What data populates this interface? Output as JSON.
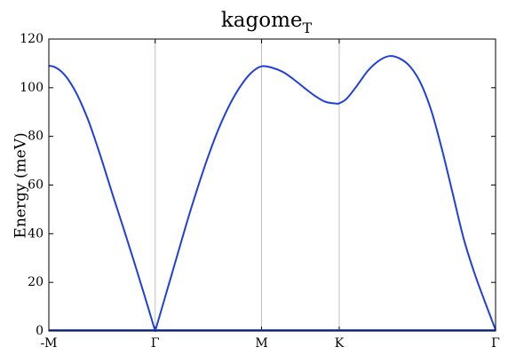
{
  "chart_data": {
    "type": "line",
    "title": "kagome",
    "title_subscript": "T",
    "xlabel": "",
    "ylabel": "Energy (meV)",
    "ylim": [
      0,
      120
    ],
    "yticks": [
      0,
      20,
      40,
      60,
      80,
      100,
      120
    ],
    "x_ticks": [
      {
        "label": "-M",
        "x": 0
      },
      {
        "label": "Γ",
        "x": 1
      },
      {
        "label": "M",
        "x": 2
      },
      {
        "label": "K",
        "x": 2.73
      },
      {
        "label": "Γ",
        "x": 4.2
      }
    ],
    "xlim": [
      0,
      4.2
    ],
    "vertical_lines_at": [
      1,
      2,
      2.73
    ],
    "grid": false,
    "series": [
      {
        "color": "#1f3fe0",
        "x": [
          0,
          0.05,
          0.1,
          0.15,
          0.2,
          0.25,
          0.3,
          0.35,
          0.4,
          0.5,
          0.6,
          0.7,
          0.8,
          0.9,
          1.0,
          1.1,
          1.2,
          1.3,
          1.4,
          1.5,
          1.6,
          1.7,
          1.8,
          1.9,
          2.0,
          2.1,
          2.2,
          2.3,
          2.4,
          2.5,
          2.6,
          2.7,
          2.73,
          2.8,
          2.9,
          3.0,
          3.1,
          3.2,
          3.3,
          3.4,
          3.5,
          3.6,
          3.7,
          3.8,
          3.9,
          4.0,
          4.1,
          4.2
        ],
        "y": [
          109,
          108.6,
          107.3,
          105.2,
          102.2,
          98.5,
          94.0,
          88.9,
          83.1,
          70.0,
          56.0,
          42.5,
          28.7,
          14.5,
          0,
          15.0,
          30.0,
          45.0,
          59.0,
          72.0,
          83.5,
          93.0,
          100.5,
          106.0,
          108.8,
          108.2,
          106.5,
          103.5,
          100.0,
          96.7,
          94.2,
          93.5,
          93.6,
          95.5,
          101.0,
          107.0,
          111.0,
          113.0,
          112.0,
          108.5,
          101.5,
          90.0,
          74.0,
          56.0,
          38.0,
          24.0,
          12.0,
          0.5
        ]
      }
    ]
  }
}
